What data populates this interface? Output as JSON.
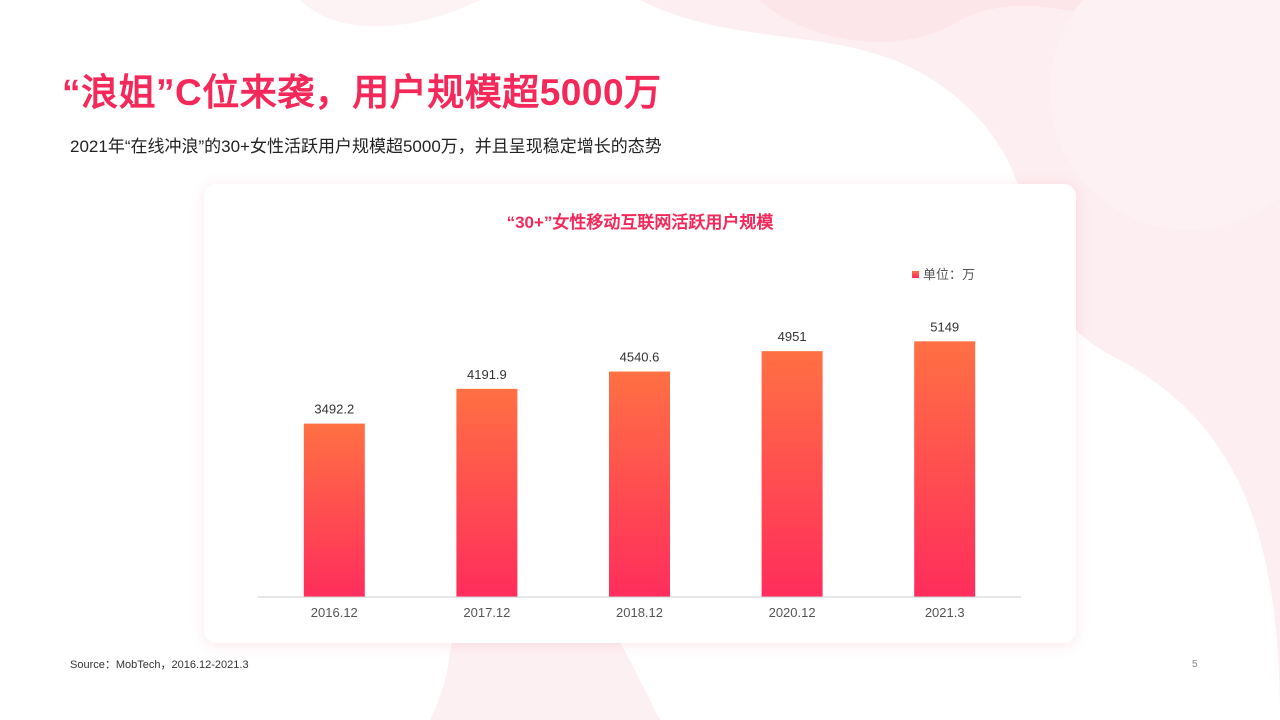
{
  "title": "“浪姐”C位来袭，用户规模超5000万",
  "subtitle": "2021年“在线冲浪”的30+女性活跃用户规模超5000万，并且呈现稳定增长的态势",
  "source": "Source：MobTech，2016.12-2021.3",
  "page_number": "5",
  "colors": {
    "accent": "#f5285a",
    "bar_top": "#ff7043",
    "bar_bottom": "#ff2d5c",
    "background_deco": "#fdeef1"
  },
  "chart_data": {
    "type": "bar",
    "title": "“30+”女性移动互联网活跃用户规模",
    "legend": "单位：万",
    "legend_position": "top-right",
    "categories": [
      "2016.12",
      "2017.12",
      "2018.12",
      "2020.12",
      "2021.3"
    ],
    "values": [
      3492.2,
      4191.9,
      4540.6,
      4951,
      5149
    ],
    "value_labels": [
      "3492.2",
      "4191.9",
      "4540.6",
      "4951",
      "5149"
    ],
    "ylim": [
      0,
      5800
    ],
    "grid": false,
    "xlabel": "",
    "ylabel": ""
  }
}
